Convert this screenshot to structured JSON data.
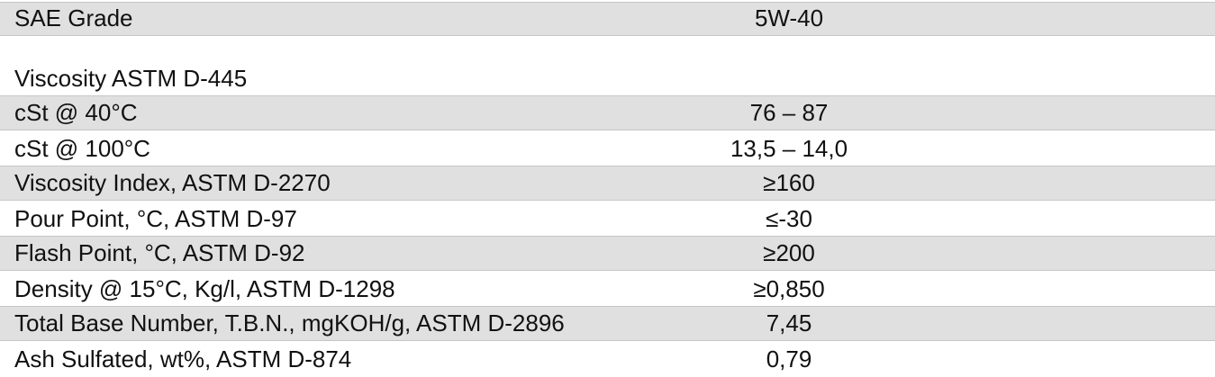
{
  "table": {
    "rows": [
      [
        "SAE Grade",
        "5W-40"
      ],
      [
        "Viscosity ASTM D-445"
      ],
      [
        "cSt @ 40°C",
        "76 – 87"
      ],
      [
        "cSt @ 100°C",
        "13,5 – 14,0"
      ],
      [
        "Viscosity Index, ASTM D-2270",
        "≥160"
      ],
      [
        "Pour Point, °C, ASTM D-97",
        "≤-30"
      ],
      [
        "Flash Point, °C, ASTM D-92",
        "≥200"
      ],
      [
        "Density @ 15°C, Kg/l, ASTM D-1298",
        "≥0,850"
      ],
      [
        "Total Base Number, T.B.N., mgKOH/g, ASTM D-2896",
        "7,45"
      ],
      [
        "Ash Sulfated, wt%, ASTM D-874",
        "0,79"
      ]
    ]
  }
}
